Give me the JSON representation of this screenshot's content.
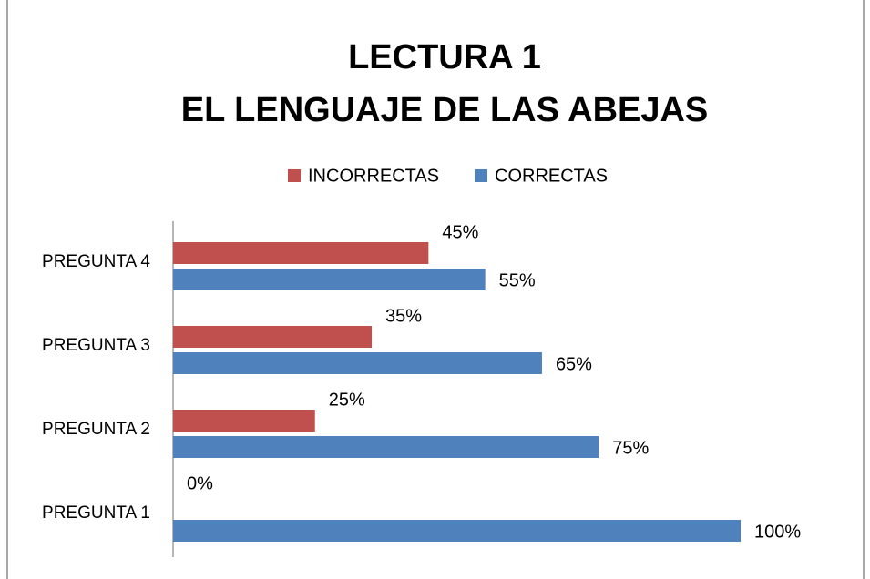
{
  "chart_data": {
    "type": "bar",
    "orientation": "horizontal",
    "title": [
      "LECTURA 1",
      "EL LENGUAJE DE LAS ABEJAS"
    ],
    "categories": [
      "PREGUNTA 1",
      "PREGUNTA 2",
      "PREGUNTA 3",
      "PREGUNTA 4"
    ],
    "series": [
      {
        "name": "INCORRECTAS",
        "color": "#c0504d",
        "values": [
          0,
          25,
          35,
          45
        ],
        "value_labels": [
          "0%",
          "25%",
          "35%",
          "45%"
        ]
      },
      {
        "name": "CORRECTAS",
        "color": "#4f81bd",
        "values": [
          100,
          75,
          65,
          55
        ],
        "value_labels": [
          "100%",
          "75%",
          "65%",
          "55%"
        ]
      }
    ],
    "legend": "top"
  }
}
